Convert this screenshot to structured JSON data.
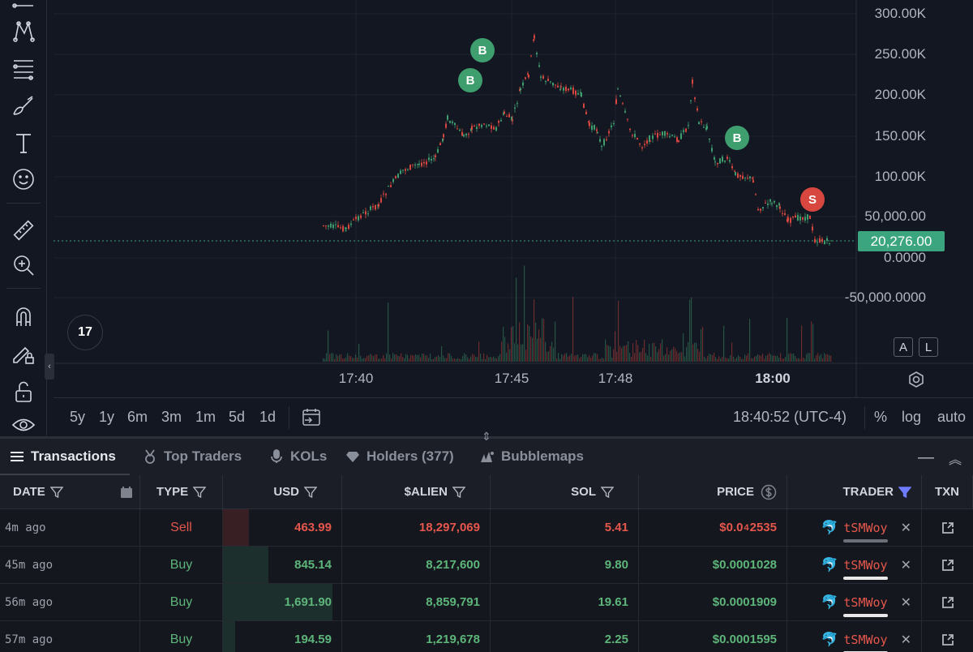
{
  "toolbar": {
    "tools": [
      "lines-icon",
      "pattern-icon",
      "fib-icon",
      "brush-icon",
      "text-icon",
      "emoji-icon",
      "ruler-icon",
      "zoom-in-icon",
      "magnet-icon",
      "lock-draw-icon",
      "unlock-icon",
      "eye-icon"
    ]
  },
  "chart": {
    "price_axis": [
      "300.00K",
      "250.00K",
      "200.00K",
      "150.00K",
      "100.00K",
      "50,000.00",
      "0.0000",
      "-50,000.0000"
    ],
    "last_price": "20,276.00",
    "time_axis": [
      {
        "label": "17:40",
        "bold": false
      },
      {
        "label": "17:45",
        "bold": false
      },
      {
        "label": "17:48",
        "bold": false
      },
      {
        "label": "18:00",
        "bold": true
      }
    ],
    "markers": [
      {
        "label": "B",
        "kind": "buy"
      },
      {
        "label": "B",
        "kind": "buy"
      },
      {
        "label": "B",
        "kind": "buy"
      },
      {
        "label": "S",
        "kind": "sell"
      }
    ],
    "scale_buttons": [
      "A",
      "L"
    ],
    "logo_text": "17"
  },
  "range_bar": {
    "ranges": [
      "5y",
      "1y",
      "6m",
      "3m",
      "1m",
      "5d",
      "1d"
    ],
    "clock": "18:40:52 (UTC-4)",
    "percent_label": "%",
    "log_label": "log",
    "auto_label": "auto"
  },
  "tabs": [
    {
      "label": "Transactions",
      "icon": "list-icon",
      "active": true
    },
    {
      "label": "Top Traders",
      "icon": "medal-icon",
      "active": false
    },
    {
      "label": "KOLs",
      "icon": "mic-icon",
      "active": false
    },
    {
      "label": "Holders (377)",
      "icon": "diamond-icon",
      "active": false
    },
    {
      "label": "Bubblemaps",
      "icon": "bubblemaps-icon",
      "active": false
    }
  ],
  "table": {
    "headers": {
      "date": "DATE",
      "type": "TYPE",
      "usd": "USD",
      "alien": "$ALIEN",
      "sol": "SOL",
      "price": "PRICE",
      "trader": "TRADER",
      "txn": "TXN"
    },
    "rows": [
      {
        "date": "4m ago",
        "type": "Sell",
        "usd": "463.99",
        "usd_fraction": 0.22,
        "alien": "18,297,069",
        "sol": "5.41",
        "price_prefix": "$0.0",
        "price_sub": "4",
        "price_rest": "2535",
        "trader": "tSMWoy",
        "underline": "grey",
        "sparkle": false
      },
      {
        "date": "45m ago",
        "type": "Buy",
        "usd": "845.14",
        "usd_fraction": 0.38,
        "alien": "8,217,600",
        "sol": "9.80",
        "price_prefix": "$0.0001028",
        "price_sub": "",
        "price_rest": "",
        "trader": "tSMWoy",
        "underline": "white",
        "sparkle": false
      },
      {
        "date": "56m ago",
        "type": "Buy",
        "usd": "1,691.90",
        "usd_fraction": 0.92,
        "alien": "8,859,791",
        "sol": "19.61",
        "price_prefix": "$0.0001909",
        "price_sub": "",
        "price_rest": "",
        "trader": "tSMWoy",
        "underline": "white",
        "sparkle": true
      },
      {
        "date": "57m ago",
        "type": "Buy",
        "usd": "194.59",
        "usd_fraction": 0.1,
        "alien": "1,219,678",
        "sol": "2.25",
        "price_prefix": "$0.0001595",
        "price_sub": "",
        "price_rest": "",
        "trader": "tSMWoy",
        "underline": "white",
        "sparkle": true
      }
    ]
  },
  "colors": {
    "buy": "#3f9e6e",
    "sell": "#d8473f",
    "last_price_bg": "#3ba57f",
    "background": "#131722"
  }
}
